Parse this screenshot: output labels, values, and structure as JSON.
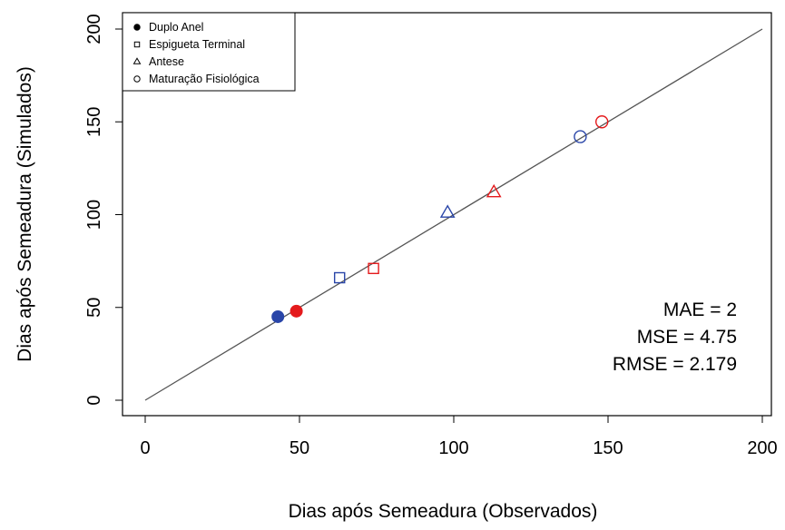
{
  "chart_data": {
    "type": "scatter",
    "xlabel": "Dias após Semeadura (Observados)",
    "ylabel": "Dias após Semeadura (Simulados)",
    "xlim": [
      0,
      200
    ],
    "ylim": [
      0,
      200
    ],
    "x_ticks": [
      "0",
      "50",
      "100",
      "150",
      "200"
    ],
    "y_ticks": [
      "0",
      "50",
      "100",
      "150",
      "200"
    ],
    "grid": false,
    "reference_line": {
      "from": [
        0,
        0
      ],
      "to": [
        200,
        200
      ]
    },
    "legend": {
      "placement": "top-left",
      "entries": [
        {
          "label": "Duplo Anel",
          "marker": "filled-circle"
        },
        {
          "label": "Espigueta Terminal",
          "marker": "square"
        },
        {
          "label": "Antese",
          "marker": "triangle"
        },
        {
          "label": "Maturação Fisiológica",
          "marker": "circle"
        }
      ]
    },
    "colors": {
      "blue": "#2945a8",
      "red": "#e41a1c",
      "line": "#555555",
      "axis": "#000000"
    },
    "points": [
      {
        "stage": "Duplo Anel",
        "marker": "filled-circle",
        "color": "blue",
        "x": 43,
        "y": 45
      },
      {
        "stage": "Duplo Anel",
        "marker": "filled-circle",
        "color": "red",
        "x": 49,
        "y": 48
      },
      {
        "stage": "Espigueta Terminal",
        "marker": "square",
        "color": "blue",
        "x": 63,
        "y": 66
      },
      {
        "stage": "Espigueta Terminal",
        "marker": "square",
        "color": "red",
        "x": 74,
        "y": 71
      },
      {
        "stage": "Antese",
        "marker": "triangle",
        "color": "blue",
        "x": 98,
        "y": 101
      },
      {
        "stage": "Antese",
        "marker": "triangle",
        "color": "red",
        "x": 113,
        "y": 112
      },
      {
        "stage": "Maturação Fisiológica",
        "marker": "circle",
        "color": "blue",
        "x": 141,
        "y": 142
      },
      {
        "stage": "Maturação Fisiológica",
        "marker": "circle",
        "color": "red",
        "x": 148,
        "y": 150
      }
    ],
    "stats": [
      "MAE =  2",
      "MSE =  4.75",
      "RMSE =  2.179"
    ]
  }
}
